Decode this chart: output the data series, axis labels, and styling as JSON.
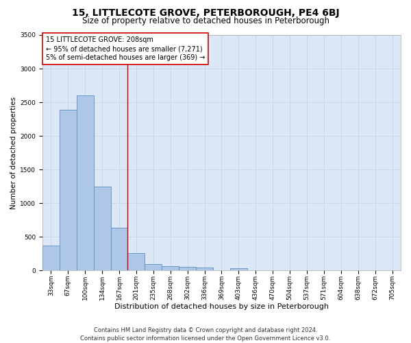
{
  "title": "15, LITTLECOTE GROVE, PETERBOROUGH, PE4 6BJ",
  "subtitle": "Size of property relative to detached houses in Peterborough",
  "xlabel": "Distribution of detached houses by size in Peterborough",
  "ylabel": "Number of detached properties",
  "footnote1": "Contains HM Land Registry data © Crown copyright and database right 2024.",
  "footnote2": "Contains public sector information licensed under the Open Government Licence v3.0.",
  "categories": [
    "33sqm",
    "67sqm",
    "100sqm",
    "134sqm",
    "167sqm",
    "201sqm",
    "235sqm",
    "268sqm",
    "302sqm",
    "336sqm",
    "369sqm",
    "403sqm",
    "436sqm",
    "470sqm",
    "504sqm",
    "537sqm",
    "571sqm",
    "604sqm",
    "638sqm",
    "672sqm",
    "705sqm"
  ],
  "values": [
    370,
    2390,
    2600,
    1250,
    640,
    260,
    100,
    60,
    55,
    40,
    0,
    30,
    0,
    0,
    0,
    0,
    0,
    0,
    0,
    0,
    0
  ],
  "bar_color": "#aec6e8",
  "bar_edge_color": "#5a8fc2",
  "grid_color": "#c8d8e8",
  "background_color": "#dce8f5",
  "property_line_color": "#cc0000",
  "property_line_index": 4.5,
  "annotation_line1": "15 LITTLECOTE GROVE: 208sqm",
  "annotation_line2": "← 95% of detached houses are smaller (7,271)",
  "annotation_line3": "5% of semi-detached houses are larger (369) →",
  "annotation_box_color": "#cc0000",
  "ylim": [
    0,
    3500
  ],
  "yticks": [
    0,
    500,
    1000,
    1500,
    2000,
    2500,
    3000,
    3500
  ],
  "title_fontsize": 10,
  "subtitle_fontsize": 8.5,
  "xlabel_fontsize": 8,
  "ylabel_fontsize": 7.5,
  "tick_fontsize": 6.5,
  "annotation_fontsize": 7,
  "footnote_fontsize": 6
}
